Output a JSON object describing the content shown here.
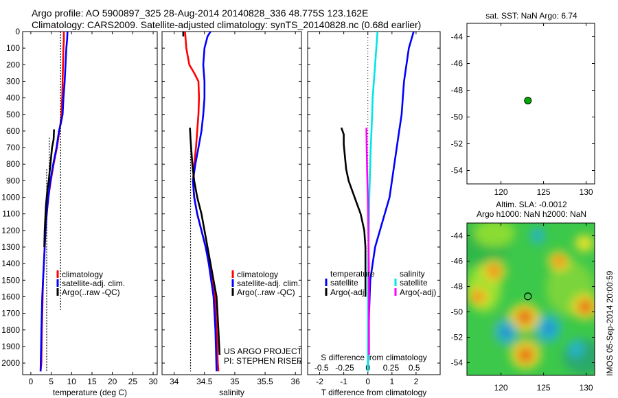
{
  "header": {
    "line1": "Argo profile: AO 5900897_325 28-Aug-2014 20140828_336 48.775S 123.162E",
    "line2": "Climatology: CARS2009. Satellite-adjusted climatology: synTS_20140828.nc (0.68d earlier)"
  },
  "colors": {
    "climatology": "#ff0000",
    "satellite": "#0000ff",
    "argo": "#000000",
    "sal_satellite": "#00e5e5",
    "sal_argo": "#ff00ff"
  },
  "chart_data": [
    {
      "type": "line",
      "id": "temperature",
      "xlabel": "temperature (deg C)",
      "ylabel": "",
      "xlim": [
        -2,
        31
      ],
      "ylim": [
        2070,
        0
      ],
      "xticks": [
        0,
        5,
        10,
        15,
        20,
        25,
        30
      ],
      "yticks": [
        0,
        100,
        200,
        300,
        400,
        500,
        600,
        700,
        800,
        900,
        1000,
        1100,
        1200,
        1300,
        1400,
        1500,
        1600,
        1700,
        1800,
        1900,
        2000
      ],
      "legend": [
        "climatology",
        "satellite-adj. clim.",
        "Argo(..raw -QC)"
      ],
      "series": [
        {
          "name": "climatology",
          "style": "solid",
          "x": [
            8.1,
            8.1,
            8.0,
            7.9,
            7.8,
            7.7,
            7.5,
            7.3,
            7.0,
            6.4,
            5.6,
            4.9,
            4.3,
            3.9,
            3.6,
            3.4,
            3.2,
            3.0,
            2.9,
            2.7,
            2.6,
            2.4
          ],
          "y": [
            0,
            50,
            100,
            200,
            300,
            400,
            500,
            550,
            600,
            700,
            800,
            900,
            1000,
            1100,
            1200,
            1300,
            1400,
            1500,
            1600,
            1800,
            2000,
            2050
          ]
        },
        {
          "name": "satellite-adj. clim.",
          "style": "solid",
          "x": [
            9.0,
            8.9,
            8.7,
            8.5,
            8.3,
            8.0,
            7.8,
            7.4,
            6.9,
            6.3,
            5.5,
            4.8,
            4.3,
            3.9,
            3.6,
            3.4,
            3.2,
            3.0,
            2.8,
            2.6,
            2.4
          ],
          "y": [
            0,
            50,
            100,
            200,
            300,
            400,
            500,
            550,
            600,
            700,
            800,
            900,
            1000,
            1100,
            1200,
            1300,
            1400,
            1500,
            1600,
            1800,
            2050
          ]
        },
        {
          "name": "Argo(..raw -QC)",
          "style": "solid",
          "x": [
            5.7,
            5.6,
            5.2,
            4.8,
            4.4,
            4.1,
            3.9,
            3.7,
            3.6,
            3.5,
            3.4,
            3.3
          ],
          "y": [
            590,
            650,
            700,
            800,
            900,
            950,
            1000,
            1050,
            1100,
            1150,
            1200,
            1300
          ]
        },
        {
          "name": "Argo(..raw -QC)",
          "style": "dashed",
          "x": [
            7.3,
            7.3
          ],
          "y": [
            0,
            1680
          ]
        },
        {
          "name": "Argo(..raw -QC)",
          "style": "dashed",
          "x": [
            3.9,
            3.9
          ],
          "y": [
            830,
            2050
          ]
        },
        {
          "name": "Argo(..raw -QC)",
          "style": "dashed",
          "x": [
            4.5,
            4.5
          ],
          "y": [
            640,
            900
          ]
        }
      ]
    },
    {
      "type": "line",
      "id": "salinity",
      "xlabel": "salinity",
      "ylabel": "",
      "xlim": [
        33.8,
        36.1
      ],
      "ylim": [
        2070,
        0
      ],
      "xticks": [
        34,
        34.5,
        35,
        35.5,
        36
      ],
      "xticklabels": [
        "34",
        "34.5",
        "35",
        "35.5",
        "36"
      ],
      "legend": [
        "climatology",
        "satellite-adj. clim.",
        "Argo(..raw -QC)"
      ],
      "annotations": [
        "US ARGO PROJECT",
        "PI: STEPHEN RISER"
      ],
      "series": [
        {
          "name": "climatology",
          "style": "solid",
          "x": [
            34.18,
            34.2,
            34.25,
            34.33,
            34.4,
            34.41,
            34.4,
            34.38,
            34.36,
            34.33,
            34.31,
            34.33,
            34.38,
            34.45,
            34.52,
            34.58,
            34.63,
            34.67,
            34.7,
            34.72,
            34.73
          ],
          "y": [
            0,
            100,
            200,
            250,
            300,
            400,
            500,
            600,
            700,
            800,
            900,
            1000,
            1100,
            1200,
            1300,
            1400,
            1500,
            1600,
            1800,
            2000,
            2050
          ]
        },
        {
          "name": "satellite-adj. clim.",
          "style": "solid",
          "x": [
            34.6,
            34.55,
            34.5,
            34.48,
            34.5,
            34.5,
            34.48,
            34.45,
            34.4,
            34.35,
            34.31,
            34.33,
            34.38,
            34.45,
            34.52,
            34.57,
            34.61,
            34.65,
            34.68,
            34.7
          ],
          "y": [
            0,
            30,
            100,
            200,
            300,
            400,
            500,
            600,
            700,
            800,
            900,
            1000,
            1100,
            1200,
            1300,
            1400,
            1500,
            1600,
            1800,
            2050
          ]
        },
        {
          "name": "Argo(..raw -QC)",
          "style": "solid",
          "x": [
            34.26,
            34.27,
            34.3,
            34.33,
            34.38,
            34.45,
            34.5,
            34.55,
            34.6,
            34.65,
            34.7,
            34.73,
            34.75
          ],
          "y": [
            580,
            650,
            800,
            900,
            1000,
            1100,
            1200,
            1300,
            1400,
            1500,
            1600,
            1800,
            1950
          ]
        },
        {
          "name": "Argo(..raw -QC)",
          "style": "dashed",
          "x": [
            34.27,
            34.27
          ],
          "y": [
            620,
            2050
          ]
        },
        {
          "name": "Argo(..raw -QC)",
          "style": "solid",
          "x": [
            34.15,
            34.15
          ],
          "y": [
            0,
            30
          ]
        }
      ]
    },
    {
      "type": "line",
      "id": "differences",
      "xlabel": "T difference from climatology",
      "xlabel_top": "S difference from climatology",
      "ylabel": "",
      "xlim": [
        -2.5,
        3.0
      ],
      "ylim": [
        2070,
        0
      ],
      "xticks": [
        -2,
        -1,
        0,
        1,
        2
      ],
      "xticklabels": [
        "-2",
        "-1",
        "0",
        "1",
        "2"
      ],
      "secondary_xticks": [
        -0.5,
        -0.25,
        0,
        0.25,
        0.5
      ],
      "secondary_xticklabels": [
        "-0.5",
        "-0.25",
        "0",
        "0.25",
        "0.5"
      ],
      "legend_groups": [
        {
          "title": "temperature",
          "entries": [
            "satellite",
            "Argo(-adj)"
          ]
        },
        {
          "title": "salinity",
          "entries": [
            "satellite",
            "Argo(-adj)"
          ]
        }
      ],
      "series": [
        {
          "name": "temperature satellite",
          "style": "solid",
          "x": [
            1.9,
            1.8,
            1.7,
            1.6,
            1.5,
            1.45,
            1.4,
            1.35,
            1.3,
            1.2,
            1.1,
            1.0,
            0.9,
            0.7,
            0.5,
            0.3,
            0.2,
            0.1,
            0.05,
            0.0
          ],
          "y": [
            0,
            50,
            100,
            200,
            300,
            400,
            500,
            550,
            600,
            700,
            800,
            900,
            1000,
            1100,
            1200,
            1300,
            1400,
            1500,
            1700,
            2050
          ]
        },
        {
          "name": "temperature Argo(-adj)",
          "style": "solid",
          "x": [
            -1.1,
            -1.0,
            -1.0,
            -0.9,
            -0.8,
            -0.55,
            -0.3,
            -0.15,
            -0.1,
            -0.1,
            -0.1
          ],
          "y": [
            580,
            620,
            680,
            830,
            900,
            1000,
            1100,
            1200,
            1300,
            1400,
            1600
          ]
        },
        {
          "name": "salinity satellite",
          "style": "solid",
          "x": [
            0.4,
            0.35,
            0.3,
            0.25,
            0.2,
            0.18,
            0.15,
            0.12,
            0.1,
            0.08,
            0.06,
            0.05,
            0.04,
            0.02,
            0.01,
            0.0
          ],
          "y": [
            0,
            100,
            200,
            300,
            400,
            500,
            600,
            700,
            800,
            900,
            1000,
            1100,
            1200,
            1400,
            1600,
            2050
          ]
        },
        {
          "name": "salinity Argo(-adj)",
          "style": "solid",
          "x": [
            -0.06,
            -0.05,
            -0.03,
            0.0,
            0.02,
            0.04,
            0.05
          ],
          "y": [
            580,
            700,
            850,
            1000,
            1200,
            1400,
            1950
          ]
        }
      ]
    },
    {
      "type": "scatter",
      "id": "sst-map",
      "title": "sat. SST: NaN Argo: 6.74",
      "xlim": [
        116,
        131
      ],
      "ylim": [
        -55,
        -43
      ],
      "xticks": [
        120,
        125,
        130
      ],
      "yticks": [
        -44,
        -46,
        -48,
        -50,
        -52,
        -54
      ],
      "points": [
        {
          "x": 123.162,
          "y": -48.775,
          "color": "#00aa00"
        }
      ]
    },
    {
      "type": "heatmap",
      "id": "sla-map",
      "title": "Altim. SLA: -0.0012",
      "subtitle": "Argo h1000: NaN h2000: NaN",
      "xlim": [
        116,
        131
      ],
      "ylim": [
        -55,
        -43
      ],
      "xticks": [
        120,
        125,
        130
      ],
      "yticks": [
        -44,
        -46,
        -48,
        -50,
        -52,
        -54
      ],
      "marker": {
        "x": 123.162,
        "y": -48.775
      },
      "blobs": [
        {
          "x": 122.8,
          "y": -50.4,
          "v": 1.0
        },
        {
          "x": 122.9,
          "y": -53.4,
          "v": 1.0
        },
        {
          "x": 129.9,
          "y": -49.6,
          "v": 0.85
        },
        {
          "x": 125.6,
          "y": -51.3,
          "v": -1.0
        },
        {
          "x": 120.6,
          "y": -51.6,
          "v": -0.75
        },
        {
          "x": 119.2,
          "y": -46.8,
          "v": 0.6
        },
        {
          "x": 126.8,
          "y": -46.0,
          "v": 0.5
        },
        {
          "x": 129.8,
          "y": -44.6,
          "v": 0.3
        },
        {
          "x": 128.8,
          "y": -52.9,
          "v": -0.35
        },
        {
          "x": 117.3,
          "y": -48.8,
          "v": 0.45
        },
        {
          "x": 124.3,
          "y": -44.0,
          "v": -0.2
        }
      ]
    }
  ],
  "watermark": "IMOS 05-Sep-2014 20:00:59"
}
